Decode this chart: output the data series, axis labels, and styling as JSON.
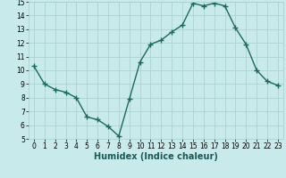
{
  "x": [
    0,
    1,
    2,
    3,
    4,
    5,
    6,
    7,
    8,
    9,
    10,
    11,
    12,
    13,
    14,
    15,
    16,
    17,
    18,
    19,
    20,
    21,
    22,
    23
  ],
  "y": [
    10.3,
    9.0,
    8.6,
    8.4,
    8.0,
    6.6,
    6.4,
    5.9,
    5.2,
    7.9,
    10.6,
    11.9,
    12.2,
    12.8,
    13.3,
    14.9,
    14.7,
    14.9,
    14.7,
    13.1,
    11.9,
    10.0,
    9.2,
    8.9
  ],
  "line_color": "#1a6b5a",
  "marker": "+",
  "marker_size": 4,
  "bg_color": "#c8eaea",
  "grid_color": "#a8cece",
  "xlabel": "Humidex (Indice chaleur)",
  "xlim": [
    -0.5,
    23.5
  ],
  "ylim": [
    5,
    15
  ],
  "yticks": [
    5,
    6,
    7,
    8,
    9,
    10,
    11,
    12,
    13,
    14,
    15
  ],
  "xticks": [
    0,
    1,
    2,
    3,
    4,
    5,
    6,
    7,
    8,
    9,
    10,
    11,
    12,
    13,
    14,
    15,
    16,
    17,
    18,
    19,
    20,
    21,
    22,
    23
  ],
  "tick_fontsize": 5.5,
  "xlabel_fontsize": 7,
  "line_width": 1.0
}
